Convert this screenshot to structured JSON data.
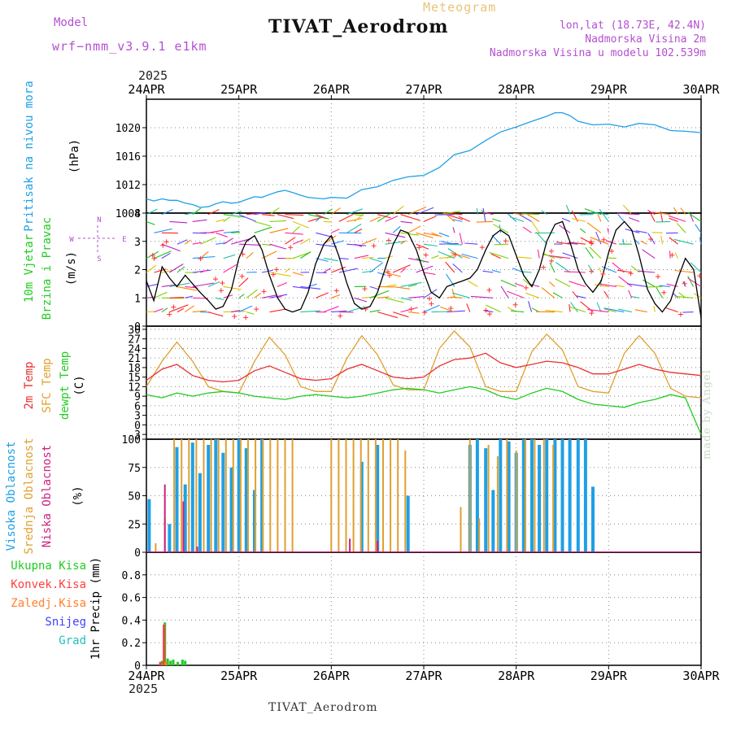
{
  "header": {
    "meteogram": "Meteogram",
    "title": "TIVAT_Aerodrom",
    "model_label": "Model",
    "model_name": "wrf−nmm_v3.9.1  e1km",
    "lonlat": "lon,lat (18.73E, 42.4N)",
    "elevation": "Nadmorska Visina 2m",
    "model_elevation": "Nadmorska Visina u modelu 102.539m",
    "year": "2025"
  },
  "footer": {
    "title": "TIVAT_Aerodrom",
    "watermark": "made by Angel"
  },
  "compass": {
    "north": "N",
    "west": "W",
    "east": "E",
    "south": "S"
  },
  "colors": {
    "pressure": "#1ea0e6",
    "wind_speed": "#000000",
    "t2m": "#e83030",
    "tsfc": "#dfa030",
    "dewpt": "#22cc22",
    "high_cloud": "#1ea0e6",
    "mid_cloud": "#dfa030",
    "low_cloud": "#cc2080",
    "total_precip": "#22cc22",
    "conv_precip": "#ff4040",
    "frozen_precip": "#ff8030",
    "snow": "#4040ff",
    "hail": "#20c0c0"
  },
  "chart_data": [
    {
      "type": "line",
      "panel": "pressure",
      "ylabel_parts": [
        "Pritisak na nivou mora",
        "(hPa)"
      ],
      "x_ticks": [
        "24APR",
        "25APR",
        "26APR",
        "27APR",
        "28APR",
        "29APR",
        "30APR"
      ],
      "ylim": [
        1008,
        1024
      ],
      "y_ticks": [
        1008,
        1012,
        1016,
        1020
      ],
      "grid": true,
      "series": [
        {
          "x": [
            0,
            0.08,
            0.17,
            0.25,
            0.33,
            0.42,
            0.5,
            0.58,
            0.67,
            0.75,
            0.83,
            0.92,
            1.0,
            1.08,
            1.17,
            1.25,
            1.33,
            1.42,
            1.5,
            1.58,
            1.67,
            1.75,
            1.83,
            1.92,
            2.0,
            2.17,
            2.33,
            2.5,
            2.67,
            2.83,
            3.0,
            3.17,
            3.33,
            3.5,
            3.67,
            3.83,
            4.0,
            4.17,
            4.33,
            4.42,
            4.5,
            4.58,
            4.67,
            4.83,
            5.0,
            5.17,
            5.33,
            5.5,
            5.67,
            5.83,
            6.0
          ],
          "values": [
            1010.0,
            1009.7,
            1010.0,
            1009.8,
            1009.8,
            1009.4,
            1009.2,
            1008.8,
            1008.9,
            1009.3,
            1009.6,
            1009.4,
            1009.5,
            1009.9,
            1010.3,
            1010.2,
            1010.6,
            1011.0,
            1011.2,
            1010.9,
            1010.5,
            1010.2,
            1010.1,
            1010.0,
            1010.2,
            1010.1,
            1011.3,
            1011.7,
            1012.6,
            1013.1,
            1013.3,
            1014.4,
            1016.2,
            1016.8,
            1018.2,
            1019.4,
            1020.1,
            1020.9,
            1021.6,
            1022.1,
            1022.1,
            1021.7,
            1020.9,
            1020.4,
            1020.5,
            1020.1,
            1020.6,
            1020.4,
            1019.6,
            1019.5,
            1019.3
          ]
        }
      ]
    },
    {
      "type": "line",
      "panel": "wind",
      "ylabel_parts": [
        "10m Vjetar",
        "Brzina i Pravac",
        "(m/s)"
      ],
      "ylim": [
        0,
        4
      ],
      "y_ticks": [
        0,
        1,
        2,
        3,
        4
      ],
      "grid": true,
      "series": [
        {
          "x": [
            0,
            0.08,
            0.17,
            0.25,
            0.33,
            0.42,
            0.5,
            0.58,
            0.67,
            0.75,
            0.83,
            0.92,
            1.0,
            1.08,
            1.17,
            1.25,
            1.33,
            1.42,
            1.5,
            1.58,
            1.67,
            1.75,
            1.83,
            1.92,
            2.0,
            2.08,
            2.17,
            2.25,
            2.33,
            2.42,
            2.5,
            2.58,
            2.67,
            2.75,
            2.83,
            2.92,
            3.0,
            3.08,
            3.17,
            3.25,
            3.33,
            3.42,
            3.5,
            3.58,
            3.67,
            3.75,
            3.83,
            3.92,
            4.0,
            4.08,
            4.17,
            4.25,
            4.33,
            4.42,
            4.5,
            4.58,
            4.67,
            4.75,
            4.83,
            4.92,
            5.0,
            5.08,
            5.17,
            5.25,
            5.33,
            5.42,
            5.5,
            5.58,
            5.67,
            5.75,
            5.83,
            5.92,
            6.0
          ],
          "values": [
            1.6,
            0.9,
            2.1,
            1.7,
            1.4,
            1.8,
            1.5,
            1.2,
            0.9,
            0.6,
            0.7,
            1.3,
            2.4,
            3.0,
            3.2,
            2.7,
            1.8,
            1.0,
            0.6,
            0.5,
            0.6,
            1.2,
            2.2,
            2.9,
            3.2,
            2.5,
            1.5,
            0.8,
            0.6,
            0.7,
            1.2,
            2.0,
            2.9,
            3.4,
            3.3,
            2.7,
            1.9,
            1.2,
            1.0,
            1.4,
            1.5,
            1.6,
            1.7,
            2.0,
            2.7,
            3.2,
            3.4,
            3.2,
            2.5,
            1.8,
            1.4,
            2.0,
            3.0,
            3.6,
            3.7,
            3.0,
            2.0,
            1.5,
            1.2,
            1.6,
            2.6,
            3.4,
            3.7,
            3.4,
            2.5,
            1.3,
            0.8,
            0.5,
            0.9,
            1.7,
            2.4,
            2.0,
            0.3
          ]
        }
      ]
    },
    {
      "type": "line",
      "panel": "temperature",
      "ylabel_parts": [
        "2m Temp",
        "SFC Temp",
        "dewpt Temp",
        "(C)"
      ],
      "ylim": [
        -4.5,
        31
      ],
      "y_ticks": [
        -3,
        0,
        3,
        6,
        9,
        12,
        15,
        18,
        21,
        24,
        27,
        30
      ],
      "grid": true,
      "series": [
        {
          "name": "2m Temp",
          "x": [
            0,
            0.17,
            0.33,
            0.5,
            0.67,
            0.83,
            1.0,
            1.17,
            1.33,
            1.5,
            1.67,
            1.83,
            2.0,
            2.17,
            2.33,
            2.5,
            2.67,
            2.83,
            3.0,
            3.17,
            3.33,
            3.5,
            3.67,
            3.83,
            4.0,
            4.17,
            4.33,
            4.5,
            4.67,
            4.83,
            5.0,
            5.17,
            5.33,
            5.5,
            5.67,
            5.83,
            6.0
          ],
          "values": [
            14.0,
            17.5,
            19.0,
            15.5,
            14.0,
            13.5,
            14.0,
            17.0,
            18.5,
            16.5,
            14.5,
            14.0,
            14.5,
            17.5,
            19.0,
            17.0,
            15.0,
            14.5,
            15.0,
            18.5,
            20.5,
            21.0,
            22.5,
            19.5,
            18.0,
            19.0,
            20.0,
            19.5,
            18.0,
            16.0,
            16.0,
            17.5,
            19.0,
            17.5,
            16.5,
            16.0,
            15.5
          ]
        },
        {
          "name": "SFC Temp",
          "x": [
            0,
            0.17,
            0.33,
            0.5,
            0.67,
            0.83,
            1.0,
            1.17,
            1.33,
            1.5,
            1.67,
            1.83,
            2.0,
            2.17,
            2.33,
            2.5,
            2.67,
            2.83,
            3.0,
            3.17,
            3.33,
            3.5,
            3.67,
            3.83,
            4.0,
            4.17,
            4.33,
            4.5,
            4.67,
            4.83,
            5.0,
            5.17,
            5.33,
            5.5,
            5.67,
            5.83,
            6.0
          ],
          "values": [
            12.0,
            20.0,
            26.0,
            20.0,
            12.0,
            10.5,
            10.0,
            20.0,
            27.5,
            22.0,
            12.0,
            10.5,
            10.5,
            21.0,
            28.0,
            22.0,
            12.5,
            11.0,
            11.0,
            24.0,
            29.5,
            24.5,
            12.0,
            10.5,
            10.5,
            23.0,
            28.5,
            23.5,
            12.0,
            10.5,
            10.0,
            22.5,
            28.0,
            22.5,
            11.5,
            9.0,
            8.5
          ]
        },
        {
          "name": "dewpt Temp",
          "x": [
            0,
            0.17,
            0.33,
            0.5,
            0.67,
            0.83,
            1.0,
            1.17,
            1.33,
            1.5,
            1.67,
            1.83,
            2.0,
            2.17,
            2.33,
            2.5,
            2.67,
            2.83,
            3.0,
            3.17,
            3.33,
            3.5,
            3.67,
            3.83,
            4.0,
            4.17,
            4.33,
            4.5,
            4.67,
            4.83,
            5.0,
            5.17,
            5.33,
            5.5,
            5.67,
            5.83,
            6.0
          ],
          "values": [
            9.5,
            8.5,
            10.0,
            9.0,
            10.0,
            10.5,
            10.0,
            9.0,
            8.5,
            8.0,
            9.0,
            9.5,
            9.0,
            8.5,
            9.0,
            10.0,
            11.0,
            11.5,
            11.0,
            10.0,
            11.0,
            12.0,
            11.0,
            9.0,
            8.0,
            10.0,
            11.5,
            10.5,
            8.0,
            6.5,
            6.0,
            5.5,
            7.0,
            8.0,
            9.5,
            8.5,
            -3.0
          ]
        }
      ]
    },
    {
      "type": "bar",
      "panel": "clouds",
      "ylabel_parts": [
        "Visoka Oblacnost",
        "Srednja Oblacnost",
        "Niska Oblacnost",
        "(%)"
      ],
      "ylim": [
        0,
        100
      ],
      "y_ticks": [
        0,
        25,
        50,
        75,
        100
      ],
      "grid": true,
      "series": [
        {
          "name": "Visoka Oblacnost",
          "x": [
            0.03,
            0.25,
            0.33,
            0.42,
            0.5,
            0.58,
            0.67,
            0.75,
            0.83,
            0.92,
            1.0,
            1.08,
            1.17,
            1.25,
            2.33,
            2.5,
            2.83,
            3.5,
            3.58,
            3.67,
            3.75,
            3.83,
            3.92,
            4.0,
            4.08,
            4.17,
            4.25,
            4.33,
            4.42,
            4.5,
            4.58,
            4.67,
            4.75,
            4.83
          ],
          "values": [
            47,
            25,
            93,
            60,
            97,
            70,
            95,
            100,
            88,
            75,
            100,
            92,
            55,
            100,
            80,
            95,
            50,
            95,
            100,
            92,
            55,
            100,
            98,
            88,
            100,
            100,
            95,
            100,
            100,
            100,
            100,
            100,
            100,
            58
          ]
        },
        {
          "name": "Srednja Oblacnost",
          "x": [
            0.1,
            0.2,
            0.3,
            0.38,
            0.46,
            0.54,
            0.62,
            0.7,
            0.78,
            0.86,
            0.94,
            1.02,
            1.1,
            1.18,
            1.26,
            1.34,
            1.42,
            1.5,
            1.58,
            2.0,
            2.08,
            2.16,
            2.24,
            2.32,
            2.4,
            2.48,
            2.56,
            2.64,
            2.72,
            2.8,
            3.4,
            3.5,
            3.6,
            3.7,
            3.8,
            3.9,
            4.0,
            4.1,
            4.2,
            4.3,
            4.4
          ],
          "values": [
            8,
            30,
            100,
            100,
            100,
            100,
            100,
            100,
            100,
            100,
            100,
            100,
            100,
            100,
            100,
            100,
            100,
            100,
            100,
            100,
            100,
            100,
            100,
            100,
            100,
            100,
            100,
            100,
            100,
            90,
            40,
            100,
            30,
            95,
            85,
            100,
            90,
            100,
            100,
            100,
            95
          ]
        },
        {
          "name": "Niska Oblacnost",
          "x": [
            0.2,
            0.4,
            0.55,
            2.2,
            2.5
          ],
          "values": [
            60,
            45,
            5,
            12,
            10
          ]
        }
      ]
    },
    {
      "type": "bar",
      "panel": "precip",
      "ylabel_parts": [
        "1hr Precip (mm)"
      ],
      "legend": [
        "Ukupna Kisa",
        "Konvek.Kisa",
        "Zaledj.Kisa",
        "Snijeg",
        "Grad"
      ],
      "ylim": [
        0,
        1.0
      ],
      "y_ticks": [
        0,
        0.2,
        0.4,
        0.6,
        0.8
      ],
      "grid": true,
      "series": [
        {
          "name": "Ukupna Kisa",
          "x": [
            0.17,
            0.2,
            0.23,
            0.26,
            0.29,
            0.34,
            0.39,
            0.42
          ],
          "values": [
            0.04,
            0.38,
            0.06,
            0.04,
            0.05,
            0.03,
            0.05,
            0.04
          ]
        },
        {
          "name": "Konvek.Kisa",
          "x": [
            0.15,
            0.19
          ],
          "values": [
            0.03,
            0.36
          ]
        },
        {
          "name": "Zaledj.Kisa",
          "x": [
            0.21
          ],
          "values": [
            0.03
          ]
        }
      ]
    }
  ]
}
